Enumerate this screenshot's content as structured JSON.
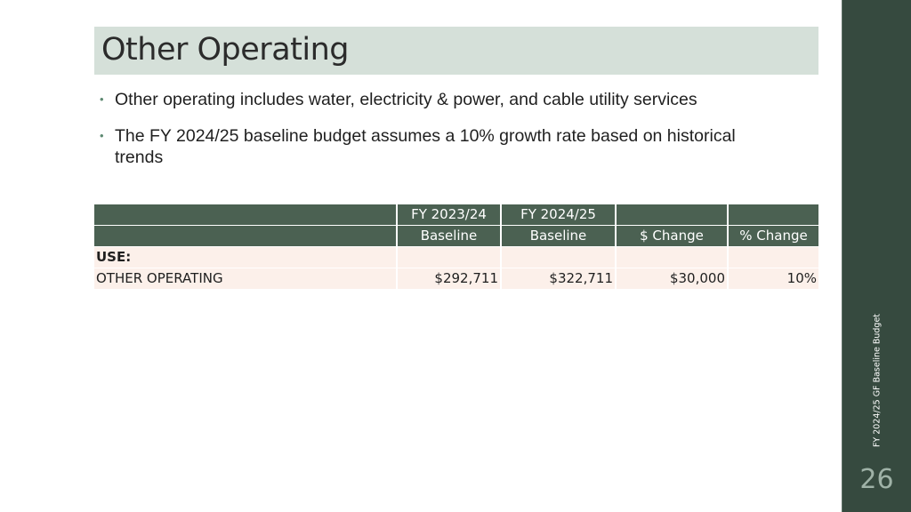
{
  "slide": {
    "title": "Other Operating",
    "bullets": [
      "Other operating includes water, electricity & power, and cable utility services",
      "The FY 2024/25 baseline budget assumes a 10% growth rate based on historical trends"
    ],
    "bullet_glyph": "•"
  },
  "table": {
    "header_row1": [
      "",
      "FY 2023/24",
      "FY 2024/25",
      "",
      ""
    ],
    "header_row2": [
      "",
      "Baseline",
      "Baseline",
      "$ Change",
      "% Change"
    ],
    "section_label": "USE:",
    "rows": [
      {
        "label": "OTHER OPERATING",
        "fy2324": "$292,711",
        "fy2425": "$322,711",
        "change": "$30,000",
        "pct": "10%"
      }
    ]
  },
  "side": {
    "vertical_caption": "FY 2024/25 GF Baseline Budget",
    "page_number": "26"
  },
  "colors": {
    "title_band": "#d5e0d9",
    "table_header": "#4b6152",
    "table_body": "#fcf0ea",
    "side_panel": "#364a3f",
    "bullet": "#5e8a72"
  }
}
